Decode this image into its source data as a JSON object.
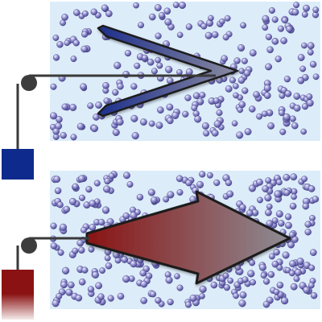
{
  "panels": [
    {
      "id": "top",
      "background": "#dcecf9",
      "arrow_shape": "chevron",
      "arrow_colors": [
        "#1c2e8c",
        "#8a8aa0"
      ],
      "weight_color": "#0e2a8c",
      "fade_bottom": false
    },
    {
      "id": "bottom",
      "background": "#dcecf9",
      "arrow_shape": "block-arrow",
      "arrow_colors": [
        "#8a1212",
        "#8d8d95"
      ],
      "weight_color": "#8a1212",
      "fade_bottom": true
    }
  ],
  "colors": {
    "line": "#3a3a3a",
    "pulley": "#3c3c3c",
    "particle_light": "#f0f0ff",
    "particle_mid": "#9c9ad6",
    "particle_dark": "#4a4690"
  }
}
